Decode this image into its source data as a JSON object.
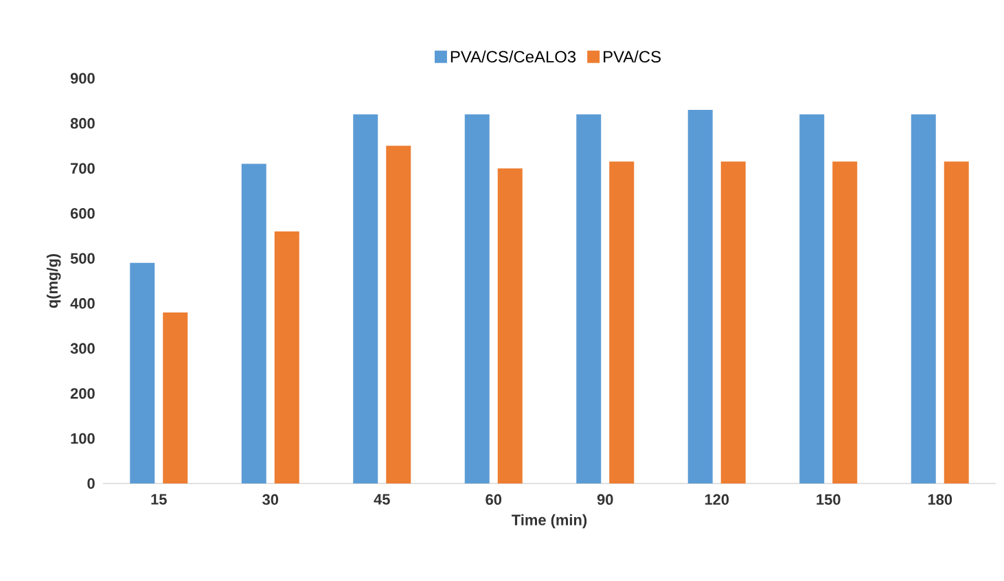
{
  "chart_data": {
    "type": "bar",
    "xlabel": "Time (min)",
    "ylabel": "q(mg/g)",
    "categories": [
      "15",
      "30",
      "45",
      "60",
      "90",
      "120",
      "150",
      "180"
    ],
    "series": [
      {
        "name": "PVA/CS/CeALO3",
        "color": "#5b9bd5",
        "values": [
          490,
          710,
          820,
          820,
          820,
          830,
          820,
          820
        ]
      },
      {
        "name": "PVA/CS",
        "color": "#ed7d31",
        "values": [
          380,
          560,
          750,
          700,
          715,
          715,
          715,
          715
        ]
      }
    ],
    "ylim": [
      0,
      900
    ],
    "yticks": [
      0,
      100,
      200,
      300,
      400,
      500,
      600,
      700,
      800,
      900
    ],
    "legend": "top"
  }
}
